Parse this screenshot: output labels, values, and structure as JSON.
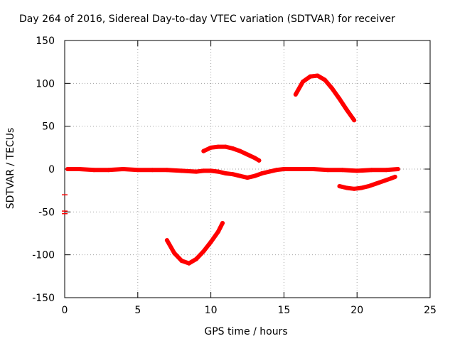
{
  "chart_data": {
    "type": "scatter",
    "title": "Day 264 of 2016, Sidereal Day-to-day VTEC variation (SDTVAR) for receiver",
    "xlabel": "GPS time / hours",
    "ylabel": "SDTVAR / TECUs",
    "xlim": [
      0,
      25
    ],
    "ylim": [
      -150,
      150
    ],
    "xticks": [
      0,
      5,
      10,
      15,
      20,
      25
    ],
    "yticks": [
      -150,
      -100,
      -50,
      0,
      50,
      100,
      150
    ],
    "grid": true,
    "marker_color": "#ff0000",
    "series": [
      {
        "x": [
          0.2,
          1,
          2,
          3,
          4,
          5,
          6,
          7,
          8,
          9,
          9.5,
          10,
          10.5,
          11,
          11.5,
          12,
          12.5,
          13,
          13.5,
          14,
          14.5,
          15,
          16,
          17,
          18,
          19,
          20,
          21,
          22,
          22.8
        ],
        "values": [
          0,
          0,
          -1,
          -1,
          0,
          -1,
          -1,
          -1,
          -2,
          -3,
          -2,
          -2,
          -3,
          -5,
          -6,
          -8,
          -10,
          -8,
          -5,
          -3,
          -1,
          0,
          0,
          0,
          -1,
          -1,
          -2,
          -1,
          -1,
          0
        ]
      },
      {
        "x": [
          9.5,
          10,
          10.5,
          11,
          11.5,
          12,
          12.5,
          13,
          13.3
        ],
        "values": [
          21,
          25,
          26,
          26,
          24,
          21,
          17,
          13,
          10
        ]
      },
      {
        "x": [
          7,
          7.5,
          8,
          8.5,
          9,
          9.5,
          10,
          10.5,
          10.8
        ],
        "values": [
          -83,
          -98,
          -107,
          -110,
          -105,
          -96,
          -85,
          -73,
          -63
        ]
      },
      {
        "x": [
          15.8,
          16.3,
          16.8,
          17.3,
          17.8,
          18.3,
          18.8,
          19.3,
          19.8
        ],
        "values": [
          87,
          102,
          108,
          109,
          104,
          94,
          82,
          69,
          57
        ]
      },
      {
        "x": [
          18.8,
          19.3,
          19.8,
          20.3,
          20.8,
          21.3,
          21.8,
          22.3,
          22.6
        ],
        "values": [
          -20,
          -22,
          -23,
          -22,
          -20,
          -17,
          -14,
          -11,
          -9
        ]
      },
      {
        "x": [
          0,
          0,
          0
        ],
        "values": [
          -30,
          -49,
          -52
        ]
      }
    ]
  }
}
